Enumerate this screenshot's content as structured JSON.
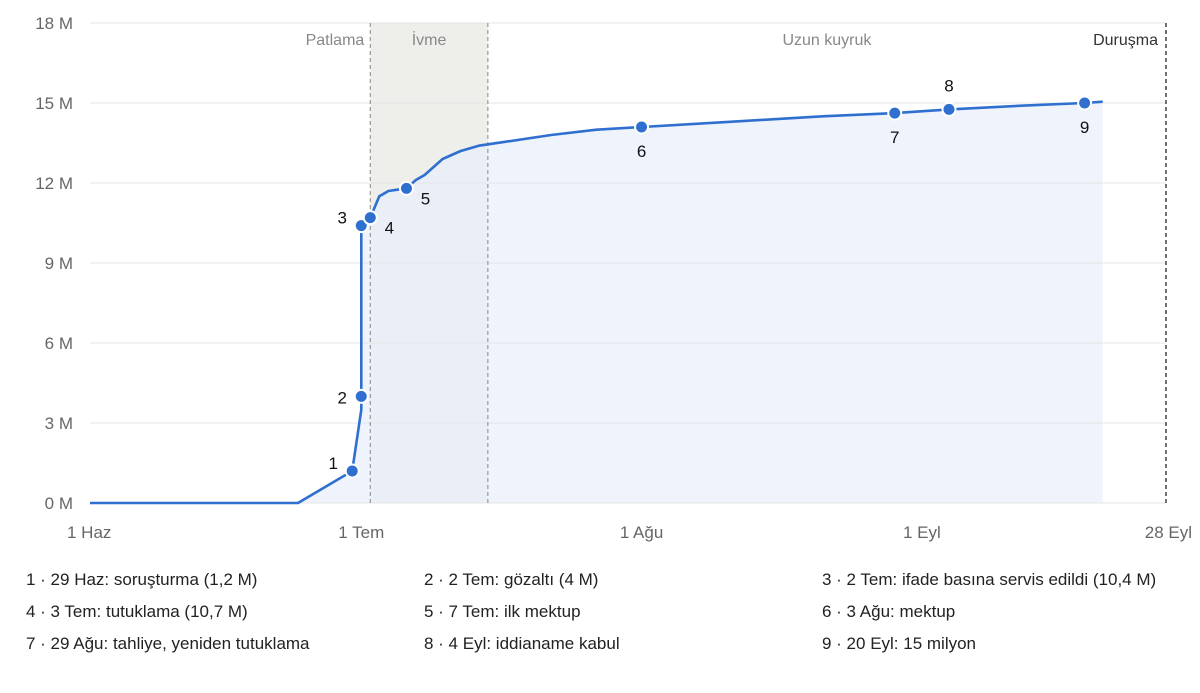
{
  "chart_data": {
    "type": "area",
    "y_ticks": [
      "0 M",
      "3 M",
      "6 M",
      "9 M",
      "12 M",
      "15 M",
      "18 M"
    ],
    "y_tick_values": [
      0,
      3,
      6,
      9,
      12,
      15,
      18
    ],
    "ylim": [
      0,
      18
    ],
    "x_ticks": [
      {
        "label": "1 Haz",
        "day": 0
      },
      {
        "label": "1 Tem",
        "day": 30
      },
      {
        "label": "1 Ağu",
        "day": 61
      },
      {
        "label": "1 Eyl",
        "day": 92
      },
      {
        "label": "28 Eyl",
        "day": 119
      }
    ],
    "xlim_days": [
      0,
      119
    ],
    "grid": true,
    "phases": [
      {
        "label": "Patlama",
        "start_day": 0,
        "end_day": 31
      },
      {
        "label": "İvme",
        "start_day": 31,
        "end_day": 44,
        "shaded": true
      },
      {
        "label": "Uzun kuyruk",
        "start_day": 44,
        "end_day": 119
      },
      {
        "label": "Duruşma",
        "end_day": 119,
        "dark": true
      }
    ],
    "series": [
      {
        "points": [
          [
            0,
            0
          ],
          [
            23,
            0
          ],
          [
            29,
            1.2
          ],
          [
            30,
            3.5
          ],
          [
            30,
            4.0
          ],
          [
            30,
            10.4
          ],
          [
            30.5,
            10.5
          ],
          [
            31,
            10.7
          ],
          [
            32,
            11.5
          ],
          [
            33,
            11.7
          ],
          [
            34,
            11.75
          ],
          [
            35,
            11.8
          ],
          [
            36,
            12.1
          ],
          [
            37,
            12.3
          ],
          [
            38,
            12.6
          ],
          [
            39,
            12.9
          ],
          [
            41,
            13.2
          ],
          [
            43,
            13.4
          ],
          [
            46,
            13.55
          ],
          [
            51,
            13.8
          ],
          [
            56,
            14.0
          ],
          [
            61,
            14.1
          ],
          [
            71,
            14.3
          ],
          [
            81,
            14.5
          ],
          [
            89,
            14.62
          ],
          [
            95,
            14.76
          ],
          [
            103,
            14.9
          ],
          [
            110,
            15.0
          ],
          [
            112,
            15.05
          ]
        ]
      }
    ],
    "annotations": [
      {
        "num": "1",
        "day": 29,
        "value": 1.2,
        "pos": "above-left"
      },
      {
        "num": "2",
        "day": 30,
        "value": 4.0,
        "pos": "left"
      },
      {
        "num": "3",
        "day": 30,
        "value": 10.4,
        "pos": "above-left"
      },
      {
        "num": "4",
        "day": 31,
        "value": 10.7,
        "pos": "below-right"
      },
      {
        "num": "5",
        "day": 35,
        "value": 11.8,
        "pos": "below-right"
      },
      {
        "num": "6",
        "day": 61,
        "value": 14.1,
        "pos": "below"
      },
      {
        "num": "7",
        "day": 89,
        "value": 14.62,
        "pos": "below"
      },
      {
        "num": "8",
        "day": 95,
        "value": 14.76,
        "pos": "above"
      },
      {
        "num": "9",
        "day": 110,
        "value": 15.0,
        "pos": "below"
      }
    ],
    "legend_items": [
      "1 · 29 Haz: soruşturma (1,2 M)",
      "2 · 2 Tem: gözaltı (4 M)",
      "3 · 2 Tem: ifade basına servis edildi (10,4 M)",
      "4 · 3 Tem: tutuklama (10,7 M)",
      "5 · 7 Tem: ilk mektup",
      "6 · 3 Ağu: mektup",
      "7 · 29 Ağu: tahliye, yeniden tutuklama",
      "8 · 4 Eyl: iddianame kabul",
      "9 · 20 Eyl: 15 milyon"
    ]
  },
  "colors": {
    "line": "#2f6fcf",
    "area": "#e8effb",
    "shade": "#eeeeea",
    "grid": "#e4e4e4"
  }
}
